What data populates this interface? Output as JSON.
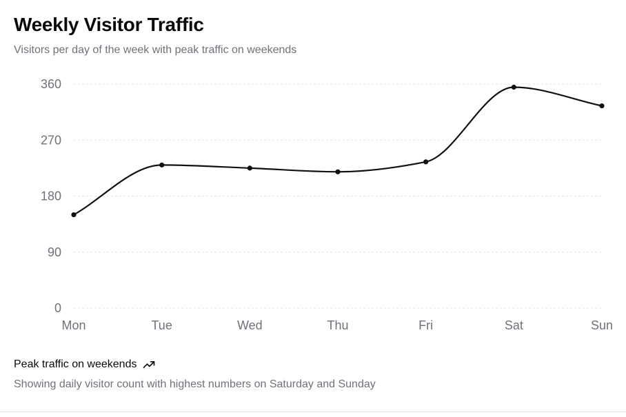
{
  "header": {
    "title": "Weekly Visitor Traffic",
    "subtitle": "Visitors per day of the week with peak traffic on weekends"
  },
  "footer": {
    "headline": "Peak traffic on weekends",
    "headline_icon": "trending-up-icon",
    "description": "Showing daily visitor count with highest numbers on Saturday and Sunday"
  },
  "colors": {
    "line": "#111111",
    "grid": "#e4e4e7",
    "tick_text": "#71717a"
  },
  "chart_data": {
    "type": "line",
    "title": "Weekly Visitor Traffic",
    "subtitle": "Visitors per day of the week with peak traffic on weekends",
    "categories": [
      "Mon",
      "Tue",
      "Wed",
      "Thu",
      "Fri",
      "Sat",
      "Sun"
    ],
    "values": [
      150,
      230,
      225,
      219,
      235,
      355,
      325
    ],
    "ylim": [
      0,
      360
    ],
    "yticks": [
      0,
      90,
      180,
      270,
      360
    ],
    "grid": true,
    "curve": "smooth",
    "markers": true,
    "xlabel": "",
    "ylabel": ""
  }
}
